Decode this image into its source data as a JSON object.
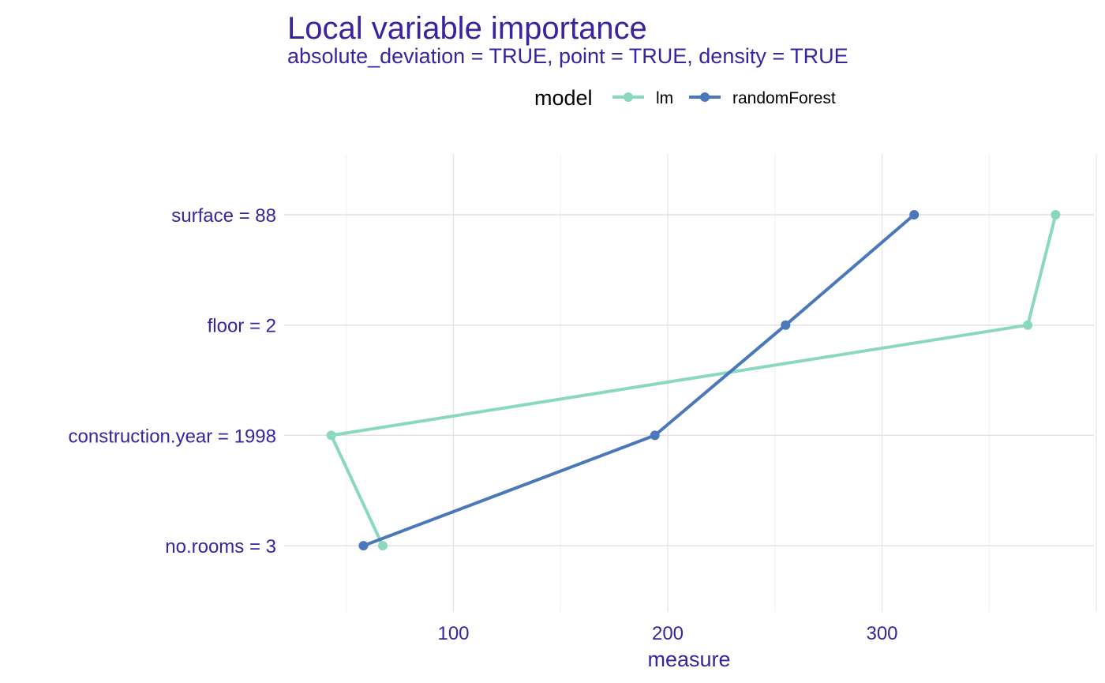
{
  "chart_data": {
    "type": "line",
    "title": "Local variable importance",
    "subtitle": "absolute_deviation = TRUE, point = TRUE, density = TRUE",
    "xlabel": "measure",
    "ylabel": "",
    "categories": [
      "surface = 88",
      "floor = 2",
      "construction.year = 1998",
      "no.rooms = 3"
    ],
    "x_ticks": [
      100,
      200,
      300
    ],
    "xlim": [
      30,
      405
    ],
    "grid": true,
    "legend": {
      "title": "model",
      "position": "top"
    },
    "series": [
      {
        "name": "lm",
        "color": "#8bd8c0",
        "points": [
          {
            "category": "surface = 88",
            "x": 381
          },
          {
            "category": "floor = 2",
            "x": 368
          },
          {
            "category": "construction.year = 1998",
            "x": 43
          },
          {
            "category": "no.rooms = 3",
            "x": 67
          }
        ]
      },
      {
        "name": "randomForest",
        "color": "#4a78bb",
        "points": [
          {
            "category": "surface = 88",
            "x": 315
          },
          {
            "category": "floor = 2",
            "x": 255
          },
          {
            "category": "construction.year = 1998",
            "x": 194
          },
          {
            "category": "no.rooms = 3",
            "x": 58
          }
        ]
      }
    ]
  }
}
